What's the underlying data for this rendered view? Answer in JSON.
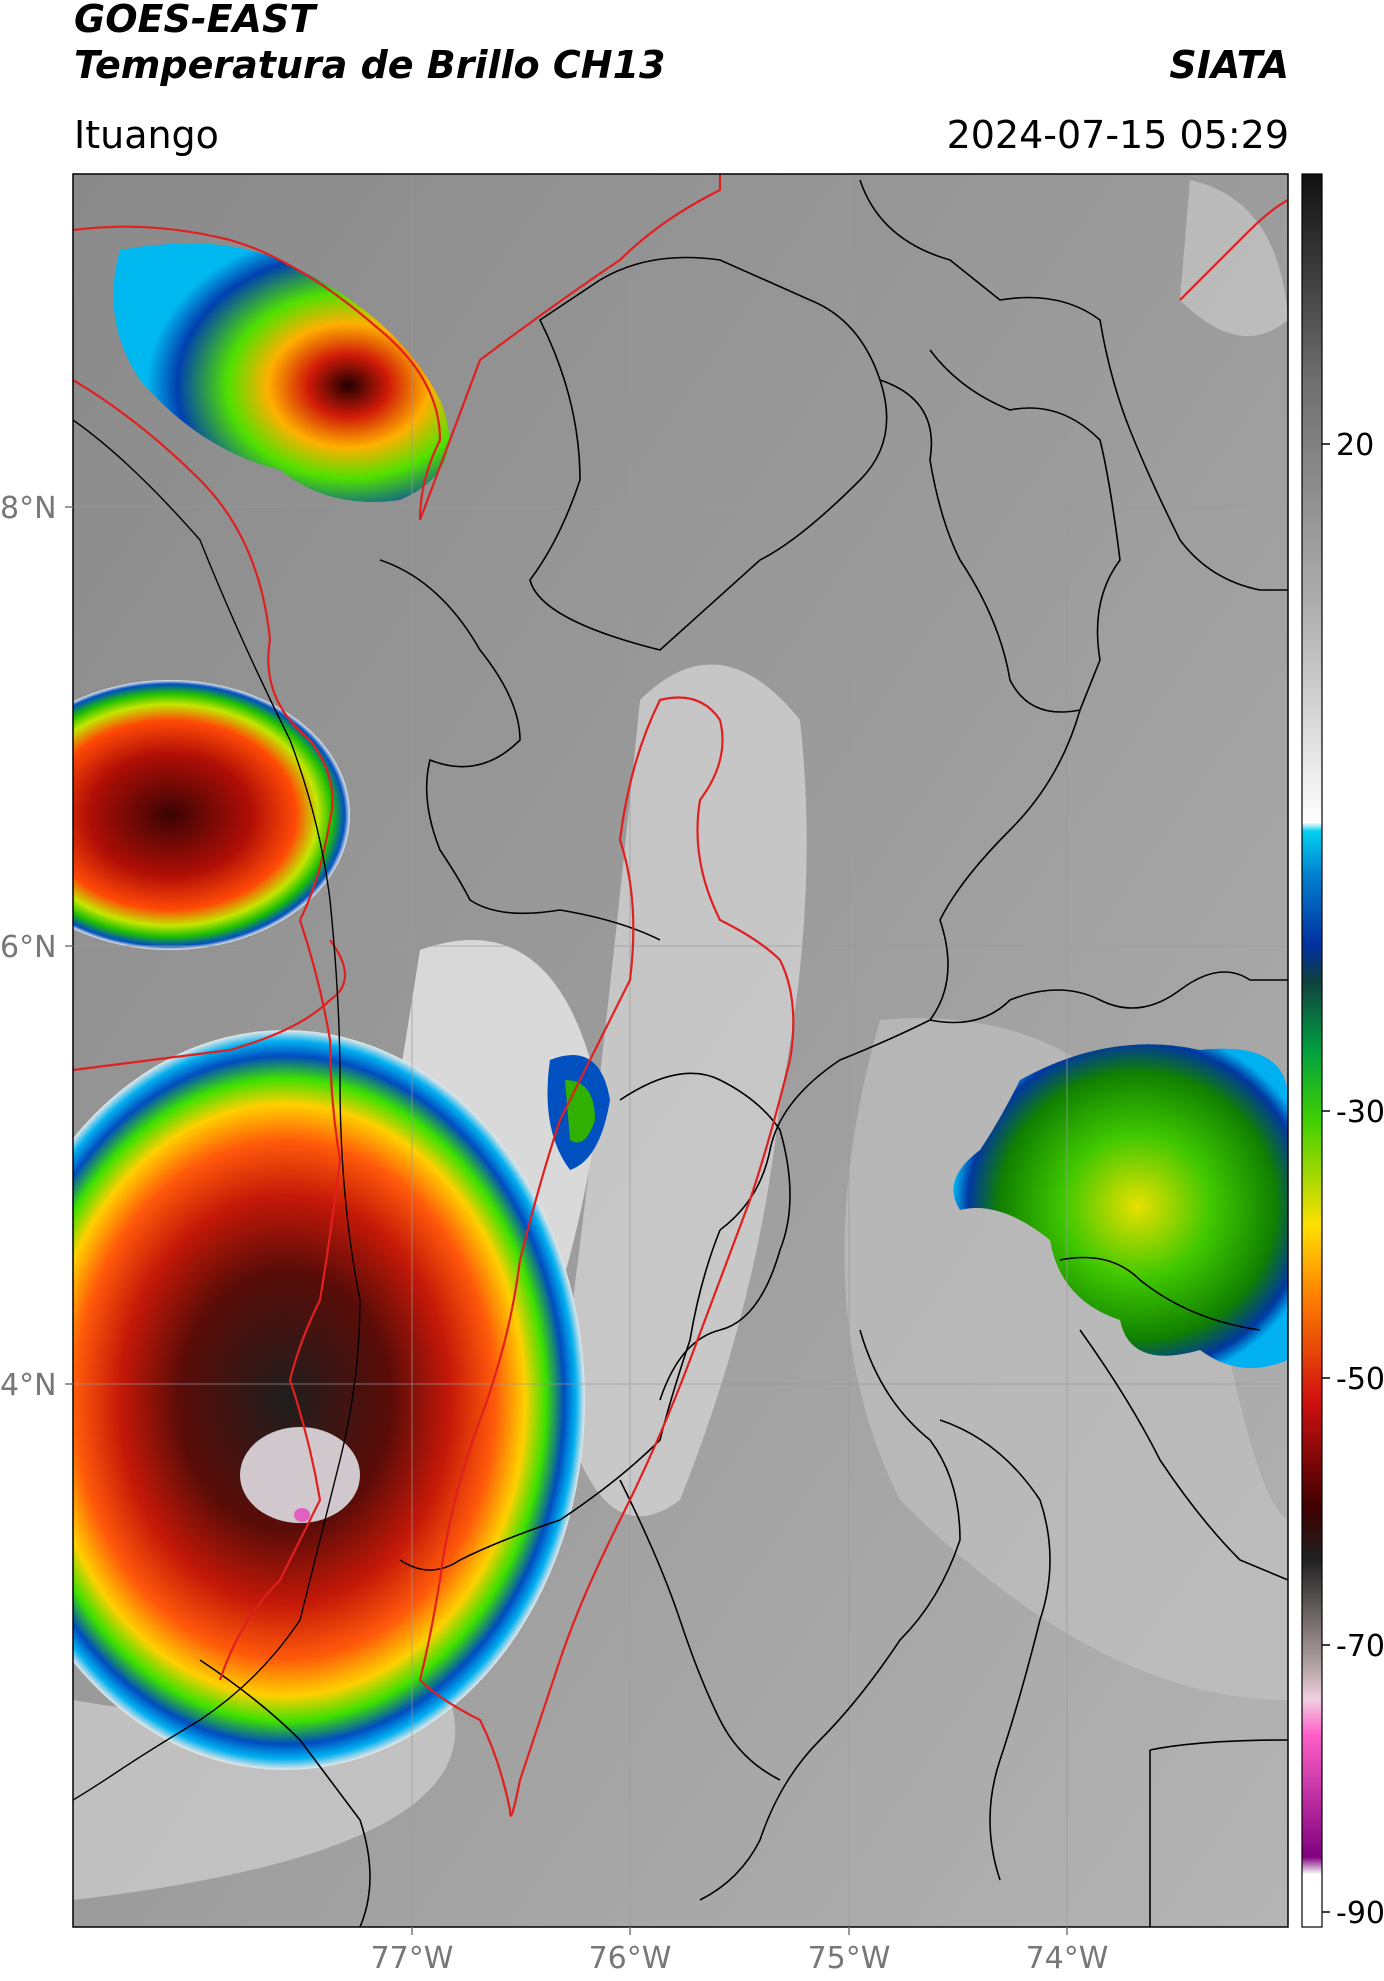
{
  "header": {
    "satellite": "GOES-EAST",
    "product": "Temperatura de Brillo CH13",
    "agency": "SIATA",
    "region": "Ituango",
    "datetime": "2024-07-15 05:29"
  },
  "axes": {
    "lat_ticks": [
      {
        "value": 8,
        "label": "8°N"
      },
      {
        "value": 6,
        "label": "6°N"
      },
      {
        "value": 4,
        "label": "4°N"
      }
    ],
    "lon_ticks": [
      {
        "value": -77,
        "label": "77°W"
      },
      {
        "value": -76,
        "label": "76°W"
      },
      {
        "value": -75,
        "label": "75°W"
      },
      {
        "value": -74,
        "label": "74°W"
      }
    ]
  },
  "colorbar": {
    "ticks": [
      {
        "value": 20,
        "label": "20"
      },
      {
        "value": -30,
        "label": "-30"
      },
      {
        "value": -50,
        "label": "-50"
      },
      {
        "value": -70,
        "label": "-70"
      },
      {
        "value": -90,
        "label": "-90"
      }
    ]
  },
  "colors": {
    "department_border": "#e02020",
    "admin_border": "#000000",
    "cloud_cold_top": "#d01010"
  }
}
